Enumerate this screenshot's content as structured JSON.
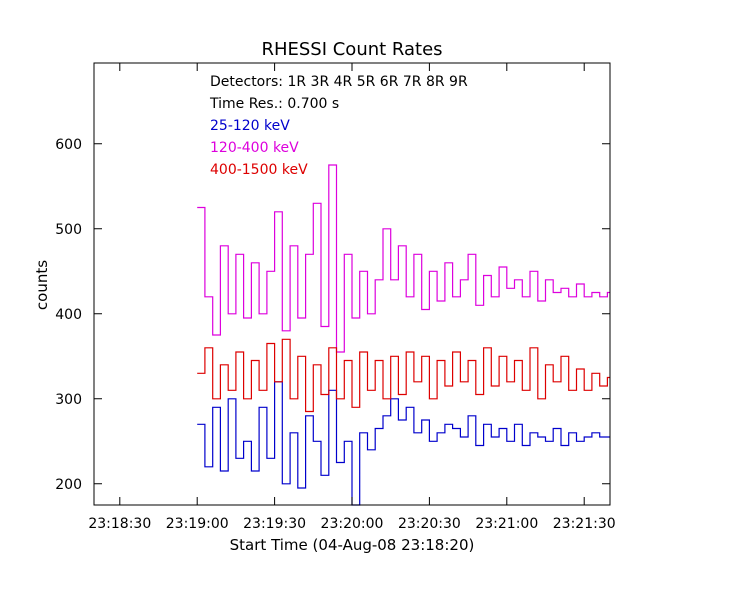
{
  "chart_data": {
    "type": "line",
    "title": "RHESSI Count Rates",
    "xlabel": "Start Time (04-Aug-08 23:18:20)",
    "ylabel": "counts",
    "x_unit": "seconds after 23:18:20",
    "xlim": [
      0,
      200
    ],
    "ylim": [
      175,
      695
    ],
    "x_ticks": [
      10,
      40,
      70,
      100,
      130,
      160,
      190
    ],
    "x_tick_labels": [
      "23:18:30",
      "23:19:00",
      "23:19:30",
      "23:20:00",
      "23:20:30",
      "23:21:00",
      "23:21:30"
    ],
    "y_ticks": [
      200,
      300,
      400,
      500,
      600
    ],
    "y_tick_labels": [
      "200",
      "300",
      "400",
      "500",
      "600"
    ],
    "annotations": [
      "Detectors:  1R 3R 4R 5R 6R 7R 8R 9R",
      "Time Res.: 0.700 s"
    ],
    "series": [
      {
        "name": "25-120 keV",
        "color": "#0000cc",
        "x": [
          40,
          43,
          46,
          49,
          52,
          55,
          58,
          61,
          64,
          67,
          70,
          73,
          76,
          79,
          82,
          85,
          88,
          91,
          94,
          97,
          100,
          103,
          106,
          109,
          112,
          115,
          118,
          121,
          124,
          127,
          130,
          133,
          136,
          139,
          142,
          145,
          148,
          151,
          154,
          157,
          160,
          163,
          166,
          169,
          172,
          175,
          178,
          181,
          184,
          187,
          190,
          193,
          196,
          199
        ],
        "values": [
          270,
          220,
          290,
          215,
          300,
          230,
          250,
          215,
          290,
          230,
          320,
          200,
          260,
          195,
          280,
          250,
          210,
          310,
          225,
          250,
          175,
          260,
          240,
          265,
          280,
          300,
          275,
          290,
          260,
          275,
          250,
          260,
          270,
          265,
          255,
          280,
          245,
          270,
          255,
          265,
          250,
          270,
          245,
          260,
          255,
          250,
          265,
          245,
          260,
          250,
          255,
          260,
          255,
          255
        ]
      },
      {
        "name": "120-400 keV",
        "color": "#dd00dd",
        "x": [
          40,
          43,
          46,
          49,
          52,
          55,
          58,
          61,
          64,
          67,
          70,
          73,
          76,
          79,
          82,
          85,
          88,
          91,
          94,
          97,
          100,
          103,
          106,
          109,
          112,
          115,
          118,
          121,
          124,
          127,
          130,
          133,
          136,
          139,
          142,
          145,
          148,
          151,
          154,
          157,
          160,
          163,
          166,
          169,
          172,
          175,
          178,
          181,
          184,
          187,
          190,
          193,
          196,
          199
        ],
        "values": [
          525,
          420,
          375,
          480,
          400,
          470,
          395,
          460,
          400,
          450,
          520,
          380,
          480,
          395,
          470,
          530,
          385,
          575,
          355,
          470,
          395,
          450,
          400,
          440,
          500,
          440,
          480,
          420,
          470,
          405,
          450,
          415,
          460,
          420,
          440,
          470,
          410,
          445,
          420,
          455,
          430,
          440,
          420,
          450,
          415,
          440,
          425,
          430,
          420,
          435,
          420,
          425,
          420,
          425
        ]
      },
      {
        "name": "400-1500 keV",
        "color": "#dd0000",
        "x": [
          40,
          43,
          46,
          49,
          52,
          55,
          58,
          61,
          64,
          67,
          70,
          73,
          76,
          79,
          82,
          85,
          88,
          91,
          94,
          97,
          100,
          103,
          106,
          109,
          112,
          115,
          118,
          121,
          124,
          127,
          130,
          133,
          136,
          139,
          142,
          145,
          148,
          151,
          154,
          157,
          160,
          163,
          166,
          169,
          172,
          175,
          178,
          181,
          184,
          187,
          190,
          193,
          196,
          199
        ],
        "values": [
          330,
          360,
          300,
          340,
          310,
          355,
          300,
          345,
          310,
          365,
          320,
          370,
          300,
          350,
          285,
          340,
          305,
          360,
          300,
          345,
          290,
          355,
          310,
          345,
          300,
          350,
          305,
          355,
          320,
          350,
          300,
          345,
          315,
          355,
          320,
          345,
          305,
          360,
          315,
          350,
          320,
          345,
          310,
          360,
          300,
          340,
          320,
          350,
          310,
          335,
          310,
          330,
          315,
          325
        ]
      }
    ]
  }
}
